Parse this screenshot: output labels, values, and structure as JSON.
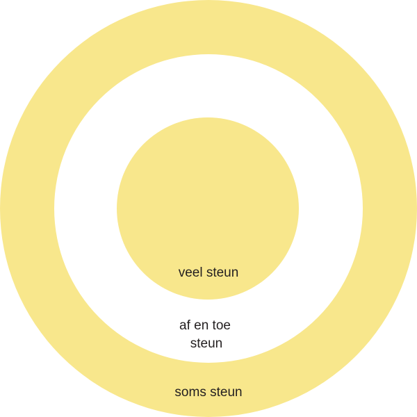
{
  "colors": {
    "ring_fill": "#f8e78c",
    "gap_fill": "#ffffff",
    "label_text": "#231f20"
  },
  "rings": {
    "outer": {
      "label": "soms steun"
    },
    "middle": {
      "label_line1": "af en toe",
      "label_line2": "steun"
    },
    "inner": {
      "label": "veel steun"
    }
  }
}
